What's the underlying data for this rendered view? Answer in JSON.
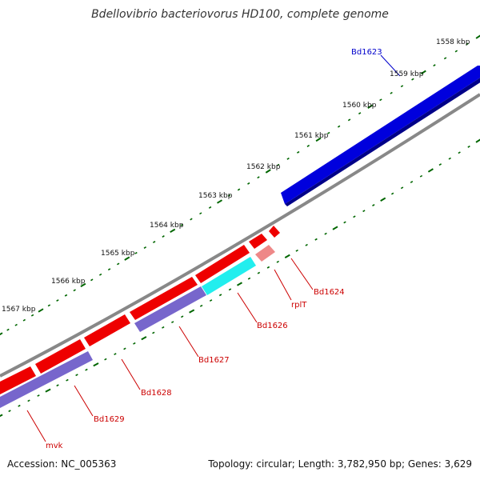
{
  "title": "Bdellovibrio bacteriovorus HD100, complete genome",
  "footer": {
    "accession": "Accession: NC_005363",
    "summary": "Topology: circular; Length: 3,782,950 bp; Genes: 3,629"
  },
  "colors": {
    "backbone": "#777777",
    "forward_gene": "#0000dd",
    "reverse_gene": "#ee0000",
    "rna_gene": "#ee8888",
    "cds_feature": "#7766cc",
    "rrna_feature": "#22eeee",
    "ticks": "#006600",
    "forward_label": "#0000cc",
    "reverse_label": "#cc0000"
  },
  "ruler": {
    "labels": [
      "1558 kbp",
      "1559 kbp",
      "1560 kbp",
      "1561 kbp",
      "1562 kbp",
      "1563 kbp",
      "1564 kbp",
      "1565 kbp",
      "1566 kbp",
      "1567 kbp"
    ]
  },
  "genes": [
    {
      "name": "Bd1623",
      "strand": "forward"
    },
    {
      "name": "Bd1624",
      "strand": "reverse"
    },
    {
      "name": "rplT",
      "strand": "reverse"
    },
    {
      "name": "Bd1626",
      "strand": "reverse"
    },
    {
      "name": "Bd1627",
      "strand": "reverse"
    },
    {
      "name": "Bd1628",
      "strand": "reverse"
    },
    {
      "name": "Bd1629",
      "strand": "reverse"
    },
    {
      "name": "mvk",
      "strand": "reverse"
    }
  ]
}
